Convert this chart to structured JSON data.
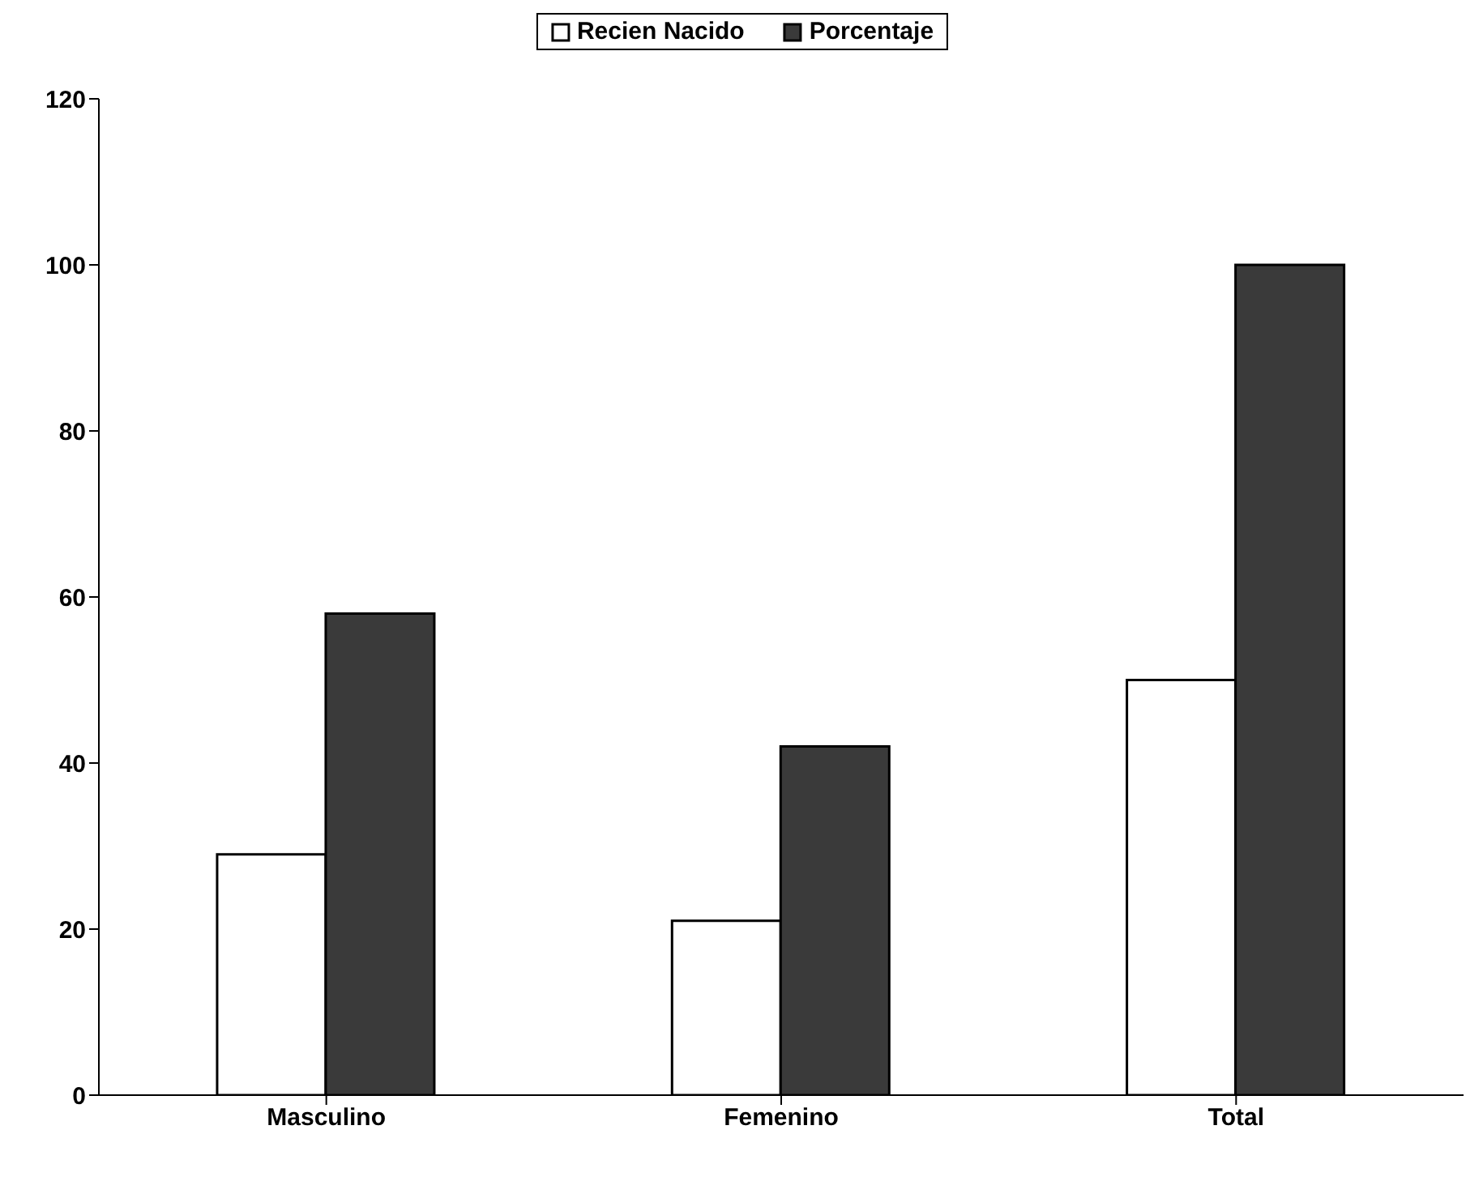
{
  "chart_data": {
    "type": "bar",
    "categories": [
      "Masculino",
      "Femenino",
      "Total"
    ],
    "series": [
      {
        "name": "Recien Nacido",
        "color": "#ffffff",
        "values": [
          29,
          21,
          50
        ]
      },
      {
        "name": "Porcentaje",
        "color": "#3a3a3a",
        "values": [
          58,
          42,
          100
        ]
      }
    ],
    "ylim": [
      0,
      120
    ],
    "yticks": [
      0,
      20,
      40,
      60,
      80,
      100,
      120
    ],
    "grid": false,
    "legend": "top"
  }
}
